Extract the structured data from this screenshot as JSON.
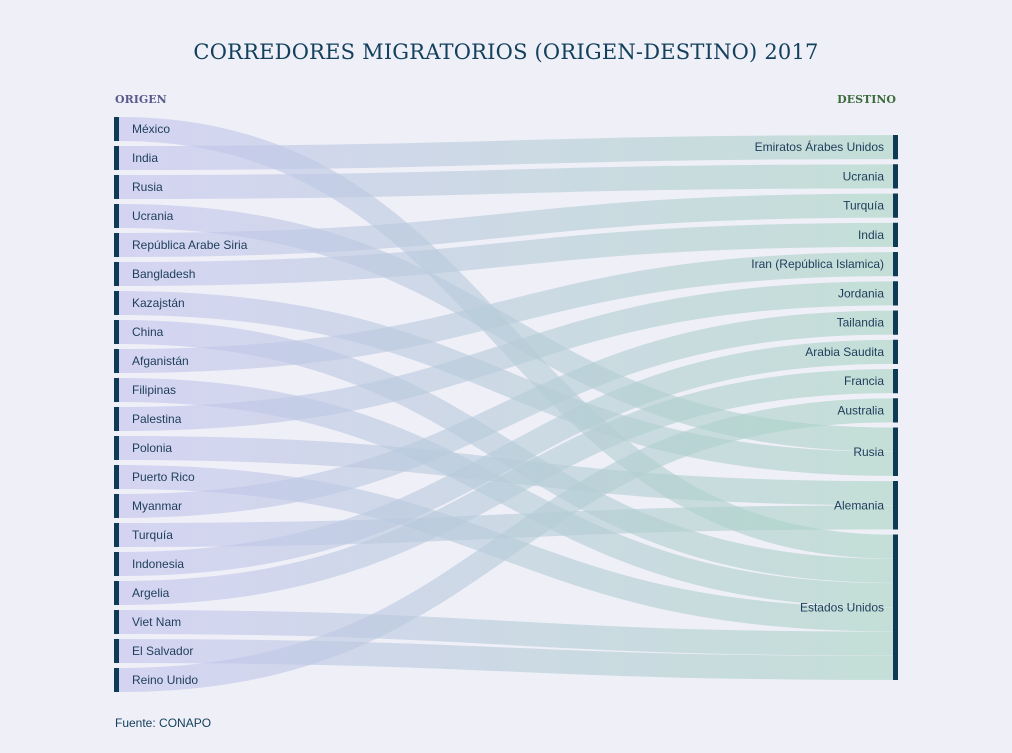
{
  "title": "CORREDORES MIGRATORIOS (ORIGEN-DESTINO) 2017",
  "origin_header": "ORIGEN",
  "destination_header": "DESTINO",
  "source": "Fuente: CONAPO",
  "colors": {
    "origin_fill": "#c4c4ee",
    "destination_fill": "#a9d4c3",
    "node_bar": "#0d3b55",
    "background": "#efeff8"
  },
  "chart_data": {
    "type": "sankey",
    "origins": [
      "México",
      "India",
      "Rusia",
      "Ucrania",
      "República Arabe Siria",
      "Bangladesh",
      "Kazajstán",
      "China",
      "Afganistán",
      "Filipinas",
      "Palestina",
      "Polonia",
      "Puerto Rico",
      "Myanmar",
      "Turquía",
      "Indonesia",
      "Argelia",
      "Viet Nam",
      "El Salvador",
      "Reino Unido"
    ],
    "destinations": [
      "Emiratos Árabes Unidos",
      "Ucrania",
      "Turquía",
      "India",
      "Iran (República Islamica)",
      "Jordania",
      "Tailandia",
      "Arabia Saudita",
      "Francia",
      "Australia",
      "Rusia",
      "Alemania",
      "Estados Unidos"
    ],
    "flows": [
      {
        "source": "México",
        "target": "Estados Unidos",
        "value": 1
      },
      {
        "source": "India",
        "target": "Emiratos Árabes Unidos",
        "value": 1
      },
      {
        "source": "Rusia",
        "target": "Ucrania",
        "value": 1
      },
      {
        "source": "Ucrania",
        "target": "Rusia",
        "value": 1
      },
      {
        "source": "República Arabe Siria",
        "target": "Turquía",
        "value": 1
      },
      {
        "source": "Bangladesh",
        "target": "India",
        "value": 1
      },
      {
        "source": "Kazajstán",
        "target": "Rusia",
        "value": 1
      },
      {
        "source": "China",
        "target": "Estados Unidos",
        "value": 1
      },
      {
        "source": "Afganistán",
        "target": "Iran (República Islamica)",
        "value": 1
      },
      {
        "source": "Filipinas",
        "target": "Estados Unidos",
        "value": 1
      },
      {
        "source": "Palestina",
        "target": "Jordania",
        "value": 1
      },
      {
        "source": "Polonia",
        "target": "Alemania",
        "value": 1
      },
      {
        "source": "Puerto Rico",
        "target": "Estados Unidos",
        "value": 1
      },
      {
        "source": "Myanmar",
        "target": "Tailandia",
        "value": 1
      },
      {
        "source": "Turquía",
        "target": "Alemania",
        "value": 1
      },
      {
        "source": "Indonesia",
        "target": "Arabia Saudita",
        "value": 1
      },
      {
        "source": "Argelia",
        "target": "Francia",
        "value": 1
      },
      {
        "source": "Viet Nam",
        "target": "Estados Unidos",
        "value": 1
      },
      {
        "source": "El Salvador",
        "target": "Estados Unidos",
        "value": 1
      },
      {
        "source": "Reino Unido",
        "target": "Australia",
        "value": 1
      }
    ]
  }
}
